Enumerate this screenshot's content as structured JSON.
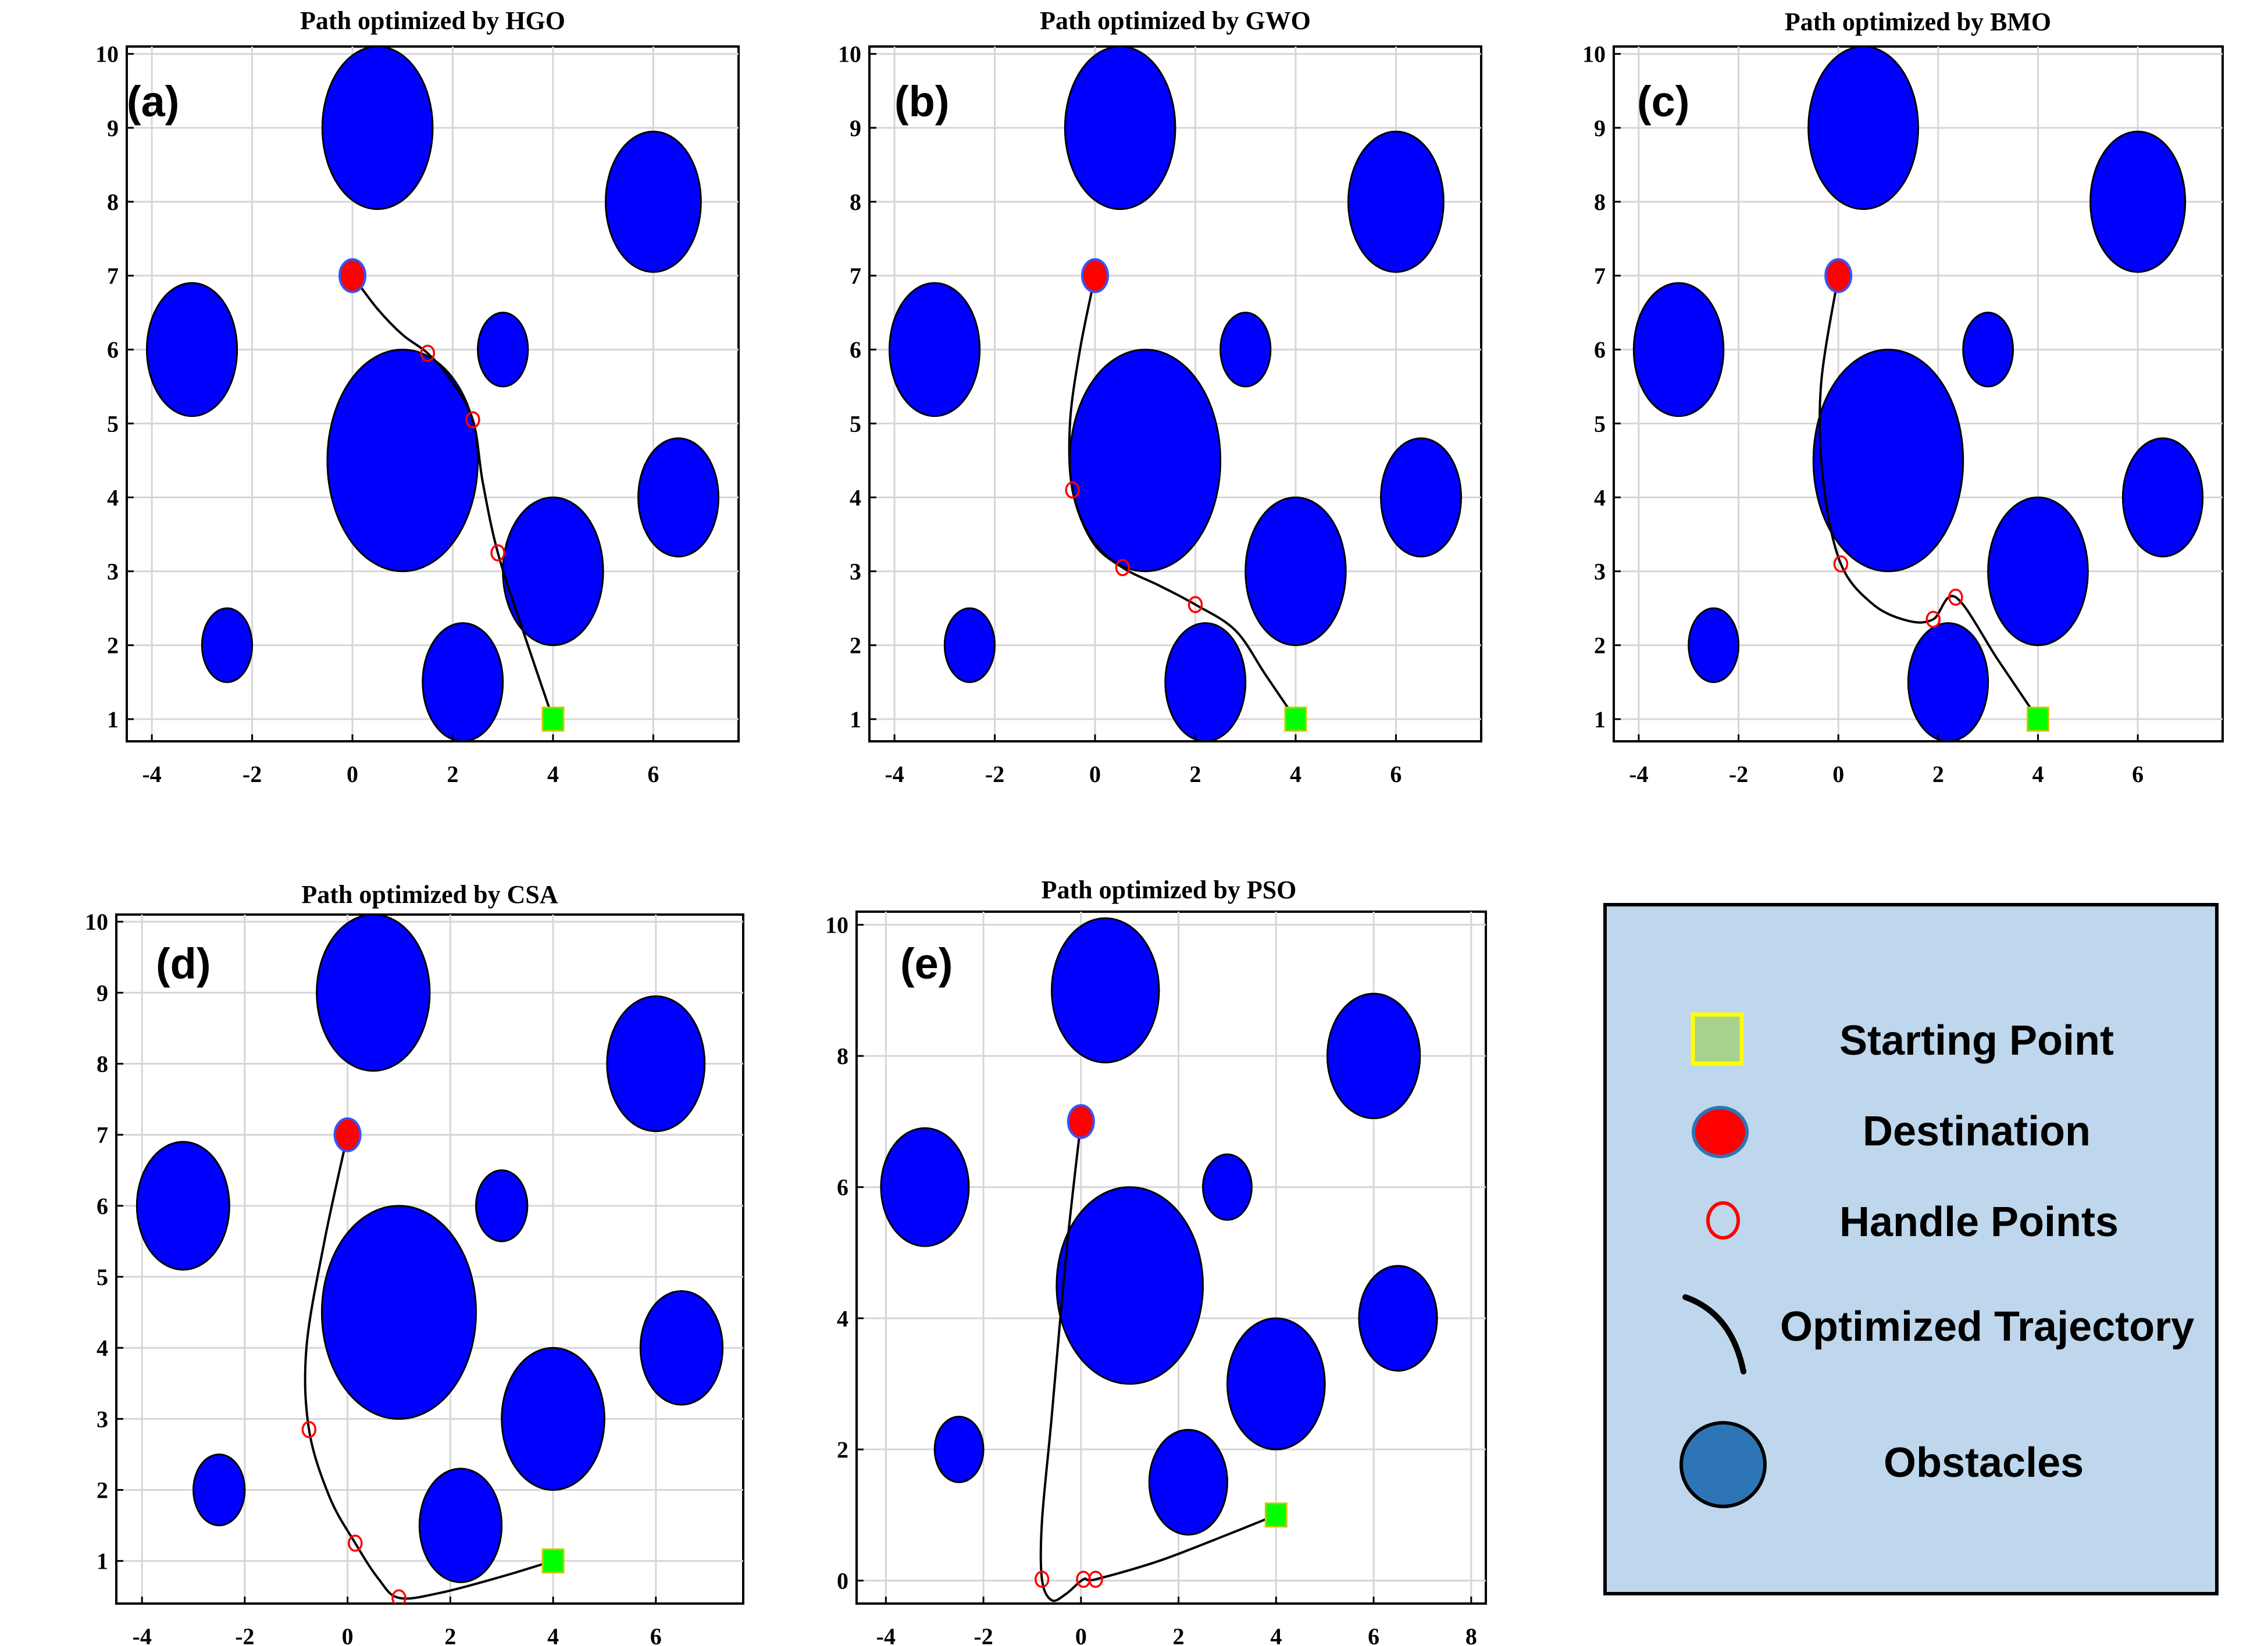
{
  "colors": {
    "obstacle": "#0000ff",
    "obstacle_legend": "#2e75b6",
    "destination": "#ff0000",
    "destination_edge": "#3355ff",
    "start": "#00ff00",
    "start_legend": "#a9d18e",
    "start_legend_edge": "#ffff00",
    "handle": "#ff0000",
    "path": "#000000",
    "legend_bg": "#bed7ec"
  },
  "legend": {
    "items": [
      {
        "label": "Starting Point",
        "icon": "start-square-icon"
      },
      {
        "label": "Destination",
        "icon": "destination-dot-icon"
      },
      {
        "label": "Handle Points",
        "icon": "handle-circle-icon"
      },
      {
        "label": "Optimized Trajectory",
        "icon": "trajectory-arc-icon"
      },
      {
        "label": "Obstacles",
        "icon": "obstacle-circle-icon"
      }
    ]
  },
  "chart_data": [
    {
      "type": "scatter",
      "panel_label": "(a)",
      "title": "Path optimized by HGO",
      "xlim": [
        -4.5,
        7.7
      ],
      "ylim": [
        0.7,
        10.1
      ],
      "xticks": [
        -4,
        -2,
        0,
        2,
        4,
        6
      ],
      "yticks": [
        1,
        2,
        3,
        4,
        5,
        6,
        7,
        8,
        9,
        10
      ],
      "obstacles": [
        {
          "x": 0.5,
          "y": 9,
          "r": 1.1
        },
        {
          "x": 6,
          "y": 8,
          "r": 0.95
        },
        {
          "x": -3.2,
          "y": 6,
          "r": 0.9
        },
        {
          "x": 3,
          "y": 6,
          "r": 0.5
        },
        {
          "x": 1,
          "y": 4.5,
          "r": 1.5
        },
        {
          "x": 6.5,
          "y": 4,
          "r": 0.8
        },
        {
          "x": 4,
          "y": 3,
          "r": 1.0
        },
        {
          "x": -2.5,
          "y": 2,
          "r": 0.5
        },
        {
          "x": 2.2,
          "y": 1.5,
          "r": 0.8
        }
      ],
      "start": {
        "x": 4,
        "y": 1
      },
      "destination": {
        "x": 0,
        "y": 7
      },
      "handle_points": [
        {
          "x": 1.5,
          "y": 5.95
        },
        {
          "x": 2.4,
          "y": 5.05
        },
        {
          "x": 2.9,
          "y": 3.25
        }
      ],
      "trajectory": [
        [
          0,
          7
        ],
        [
          0.5,
          6.55
        ],
        [
          1.0,
          6.2
        ],
        [
          1.5,
          5.95
        ],
        [
          1.95,
          5.6
        ],
        [
          2.4,
          5.05
        ],
        [
          2.6,
          4.2
        ],
        [
          2.9,
          3.25
        ],
        [
          3.4,
          2.2
        ],
        [
          4,
          1
        ]
      ]
    },
    {
      "type": "scatter",
      "panel_label": "(b)",
      "title": "Path optimized by GWO",
      "xlim": [
        -4.5,
        7.7
      ],
      "ylim": [
        0.7,
        10.1
      ],
      "xticks": [
        -4,
        -2,
        0,
        2,
        4,
        6
      ],
      "yticks": [
        1,
        2,
        3,
        4,
        5,
        6,
        7,
        8,
        9,
        10
      ],
      "obstacles": [
        {
          "x": 0.5,
          "y": 9,
          "r": 1.1
        },
        {
          "x": 6,
          "y": 8,
          "r": 0.95
        },
        {
          "x": -3.2,
          "y": 6,
          "r": 0.9
        },
        {
          "x": 3,
          "y": 6,
          "r": 0.5
        },
        {
          "x": 1,
          "y": 4.5,
          "r": 1.5
        },
        {
          "x": 6.5,
          "y": 4,
          "r": 0.8
        },
        {
          "x": 4,
          "y": 3,
          "r": 1.0
        },
        {
          "x": -2.5,
          "y": 2,
          "r": 0.5
        },
        {
          "x": 2.2,
          "y": 1.5,
          "r": 0.8
        }
      ],
      "start": {
        "x": 4,
        "y": 1
      },
      "destination": {
        "x": 0,
        "y": 7
      },
      "handle_points": [
        {
          "x": -0.45,
          "y": 4.1
        },
        {
          "x": 0.55,
          "y": 3.05
        },
        {
          "x": 2.0,
          "y": 2.55
        }
      ],
      "trajectory": [
        [
          0,
          7
        ],
        [
          -0.3,
          6.0
        ],
        [
          -0.5,
          5.0
        ],
        [
          -0.45,
          4.1
        ],
        [
          -0.05,
          3.4
        ],
        [
          0.55,
          3.05
        ],
        [
          1.3,
          2.8
        ],
        [
          2.0,
          2.55
        ],
        [
          2.8,
          2.2
        ],
        [
          3.4,
          1.6
        ],
        [
          4,
          1
        ]
      ]
    },
    {
      "type": "scatter",
      "panel_label": "(c)",
      "title": "Path optimized by BMO",
      "xlim": [
        -4.5,
        7.7
      ],
      "ylim": [
        0.7,
        10.1
      ],
      "xticks": [
        -4,
        -2,
        0,
        2,
        4,
        6
      ],
      "yticks": [
        1,
        2,
        3,
        4,
        5,
        6,
        7,
        8,
        9,
        10
      ],
      "obstacles": [
        {
          "x": 0.5,
          "y": 9,
          "r": 1.1
        },
        {
          "x": 6,
          "y": 8,
          "r": 0.95
        },
        {
          "x": -3.2,
          "y": 6,
          "r": 0.9
        },
        {
          "x": 3,
          "y": 6,
          "r": 0.5
        },
        {
          "x": 1,
          "y": 4.5,
          "r": 1.5
        },
        {
          "x": 6.5,
          "y": 4,
          "r": 0.8
        },
        {
          "x": 4,
          "y": 3,
          "r": 1.0
        },
        {
          "x": -2.5,
          "y": 2,
          "r": 0.5
        },
        {
          "x": 2.2,
          "y": 1.5,
          "r": 0.8
        }
      ],
      "start": {
        "x": 4,
        "y": 1
      },
      "destination": {
        "x": 0,
        "y": 7
      },
      "handle_points": [
        {
          "x": 0.05,
          "y": 3.1
        },
        {
          "x": 1.9,
          "y": 2.35
        },
        {
          "x": 2.35,
          "y": 2.65
        }
      ],
      "trajectory": [
        [
          0,
          7
        ],
        [
          -0.35,
          5.5
        ],
        [
          -0.3,
          4.2
        ],
        [
          0.05,
          3.1
        ],
        [
          0.7,
          2.55
        ],
        [
          1.4,
          2.33
        ],
        [
          1.9,
          2.35
        ],
        [
          2.35,
          2.65
        ],
        [
          3.2,
          1.8
        ],
        [
          4,
          1
        ]
      ]
    },
    {
      "type": "scatter",
      "panel_label": "(d)",
      "title": "Path optimized by CSA",
      "xlim": [
        -4.5,
        7.7
      ],
      "ylim": [
        0.4,
        10.1
      ],
      "xticks": [
        -4,
        -2,
        0,
        2,
        4,
        6
      ],
      "yticks": [
        1,
        2,
        3,
        4,
        5,
        6,
        7,
        8,
        9,
        10
      ],
      "obstacles": [
        {
          "x": 0.5,
          "y": 9,
          "r": 1.1
        },
        {
          "x": 6,
          "y": 8,
          "r": 0.95
        },
        {
          "x": -3.2,
          "y": 6,
          "r": 0.9
        },
        {
          "x": 3,
          "y": 6,
          "r": 0.5
        },
        {
          "x": 1,
          "y": 4.5,
          "r": 1.5
        },
        {
          "x": 6.5,
          "y": 4,
          "r": 0.8
        },
        {
          "x": 4,
          "y": 3,
          "r": 1.0
        },
        {
          "x": -2.5,
          "y": 2,
          "r": 0.5
        },
        {
          "x": 2.2,
          "y": 1.5,
          "r": 0.8
        }
      ],
      "start": {
        "x": 4,
        "y": 1
      },
      "destination": {
        "x": 0,
        "y": 7
      },
      "handle_points": [
        {
          "x": -0.75,
          "y": 2.85
        },
        {
          "x": 0.15,
          "y": 1.25
        },
        {
          "x": 1.0,
          "y": 0.48
        }
      ],
      "trajectory": [
        [
          0,
          7
        ],
        [
          -0.45,
          5.5
        ],
        [
          -0.8,
          4.0
        ],
        [
          -0.75,
          2.85
        ],
        [
          -0.35,
          1.9
        ],
        [
          0.15,
          1.25
        ],
        [
          0.6,
          0.75
        ],
        [
          1.0,
          0.48
        ],
        [
          1.8,
          0.55
        ],
        [
          3.0,
          0.78
        ],
        [
          4,
          1
        ]
      ]
    },
    {
      "type": "scatter",
      "panel_label": "(e)",
      "title": "Path optimized by PSO",
      "xlim": [
        -4.6,
        8.3
      ],
      "ylim": [
        -0.35,
        10.2
      ],
      "xticks": [
        -4,
        -2,
        0,
        2,
        4,
        6,
        8
      ],
      "yticks": [
        0,
        2,
        4,
        6,
        8,
        10
      ],
      "obstacles": [
        {
          "x": 0.5,
          "y": 9,
          "r": 1.1
        },
        {
          "x": 6,
          "y": 8,
          "r": 0.95
        },
        {
          "x": -3.2,
          "y": 6,
          "r": 0.9
        },
        {
          "x": 3,
          "y": 6,
          "r": 0.5
        },
        {
          "x": 1,
          "y": 4.5,
          "r": 1.5
        },
        {
          "x": 6.5,
          "y": 4,
          "r": 0.8
        },
        {
          "x": 4,
          "y": 3,
          "r": 1.0
        },
        {
          "x": -2.5,
          "y": 2,
          "r": 0.5
        },
        {
          "x": 2.2,
          "y": 1.5,
          "r": 0.8
        }
      ],
      "start": {
        "x": 4,
        "y": 1
      },
      "destination": {
        "x": 0,
        "y": 7
      },
      "handle_points": [
        {
          "x": -0.8,
          "y": 0.02
        },
        {
          "x": 0.05,
          "y": 0.02
        },
        {
          "x": 0.3,
          "y": 0.02
        }
      ],
      "trajectory": [
        [
          0,
          7
        ],
        [
          -0.3,
          5.0
        ],
        [
          -0.6,
          2.5
        ],
        [
          -0.8,
          0.9
        ],
        [
          -0.8,
          0.02
        ],
        [
          -0.6,
          -0.3
        ],
        [
          -0.3,
          -0.2
        ],
        [
          0.05,
          0.02
        ],
        [
          0.3,
          0.02
        ],
        [
          1.6,
          0.3
        ],
        [
          3.0,
          0.7
        ],
        [
          4,
          1
        ]
      ]
    }
  ]
}
